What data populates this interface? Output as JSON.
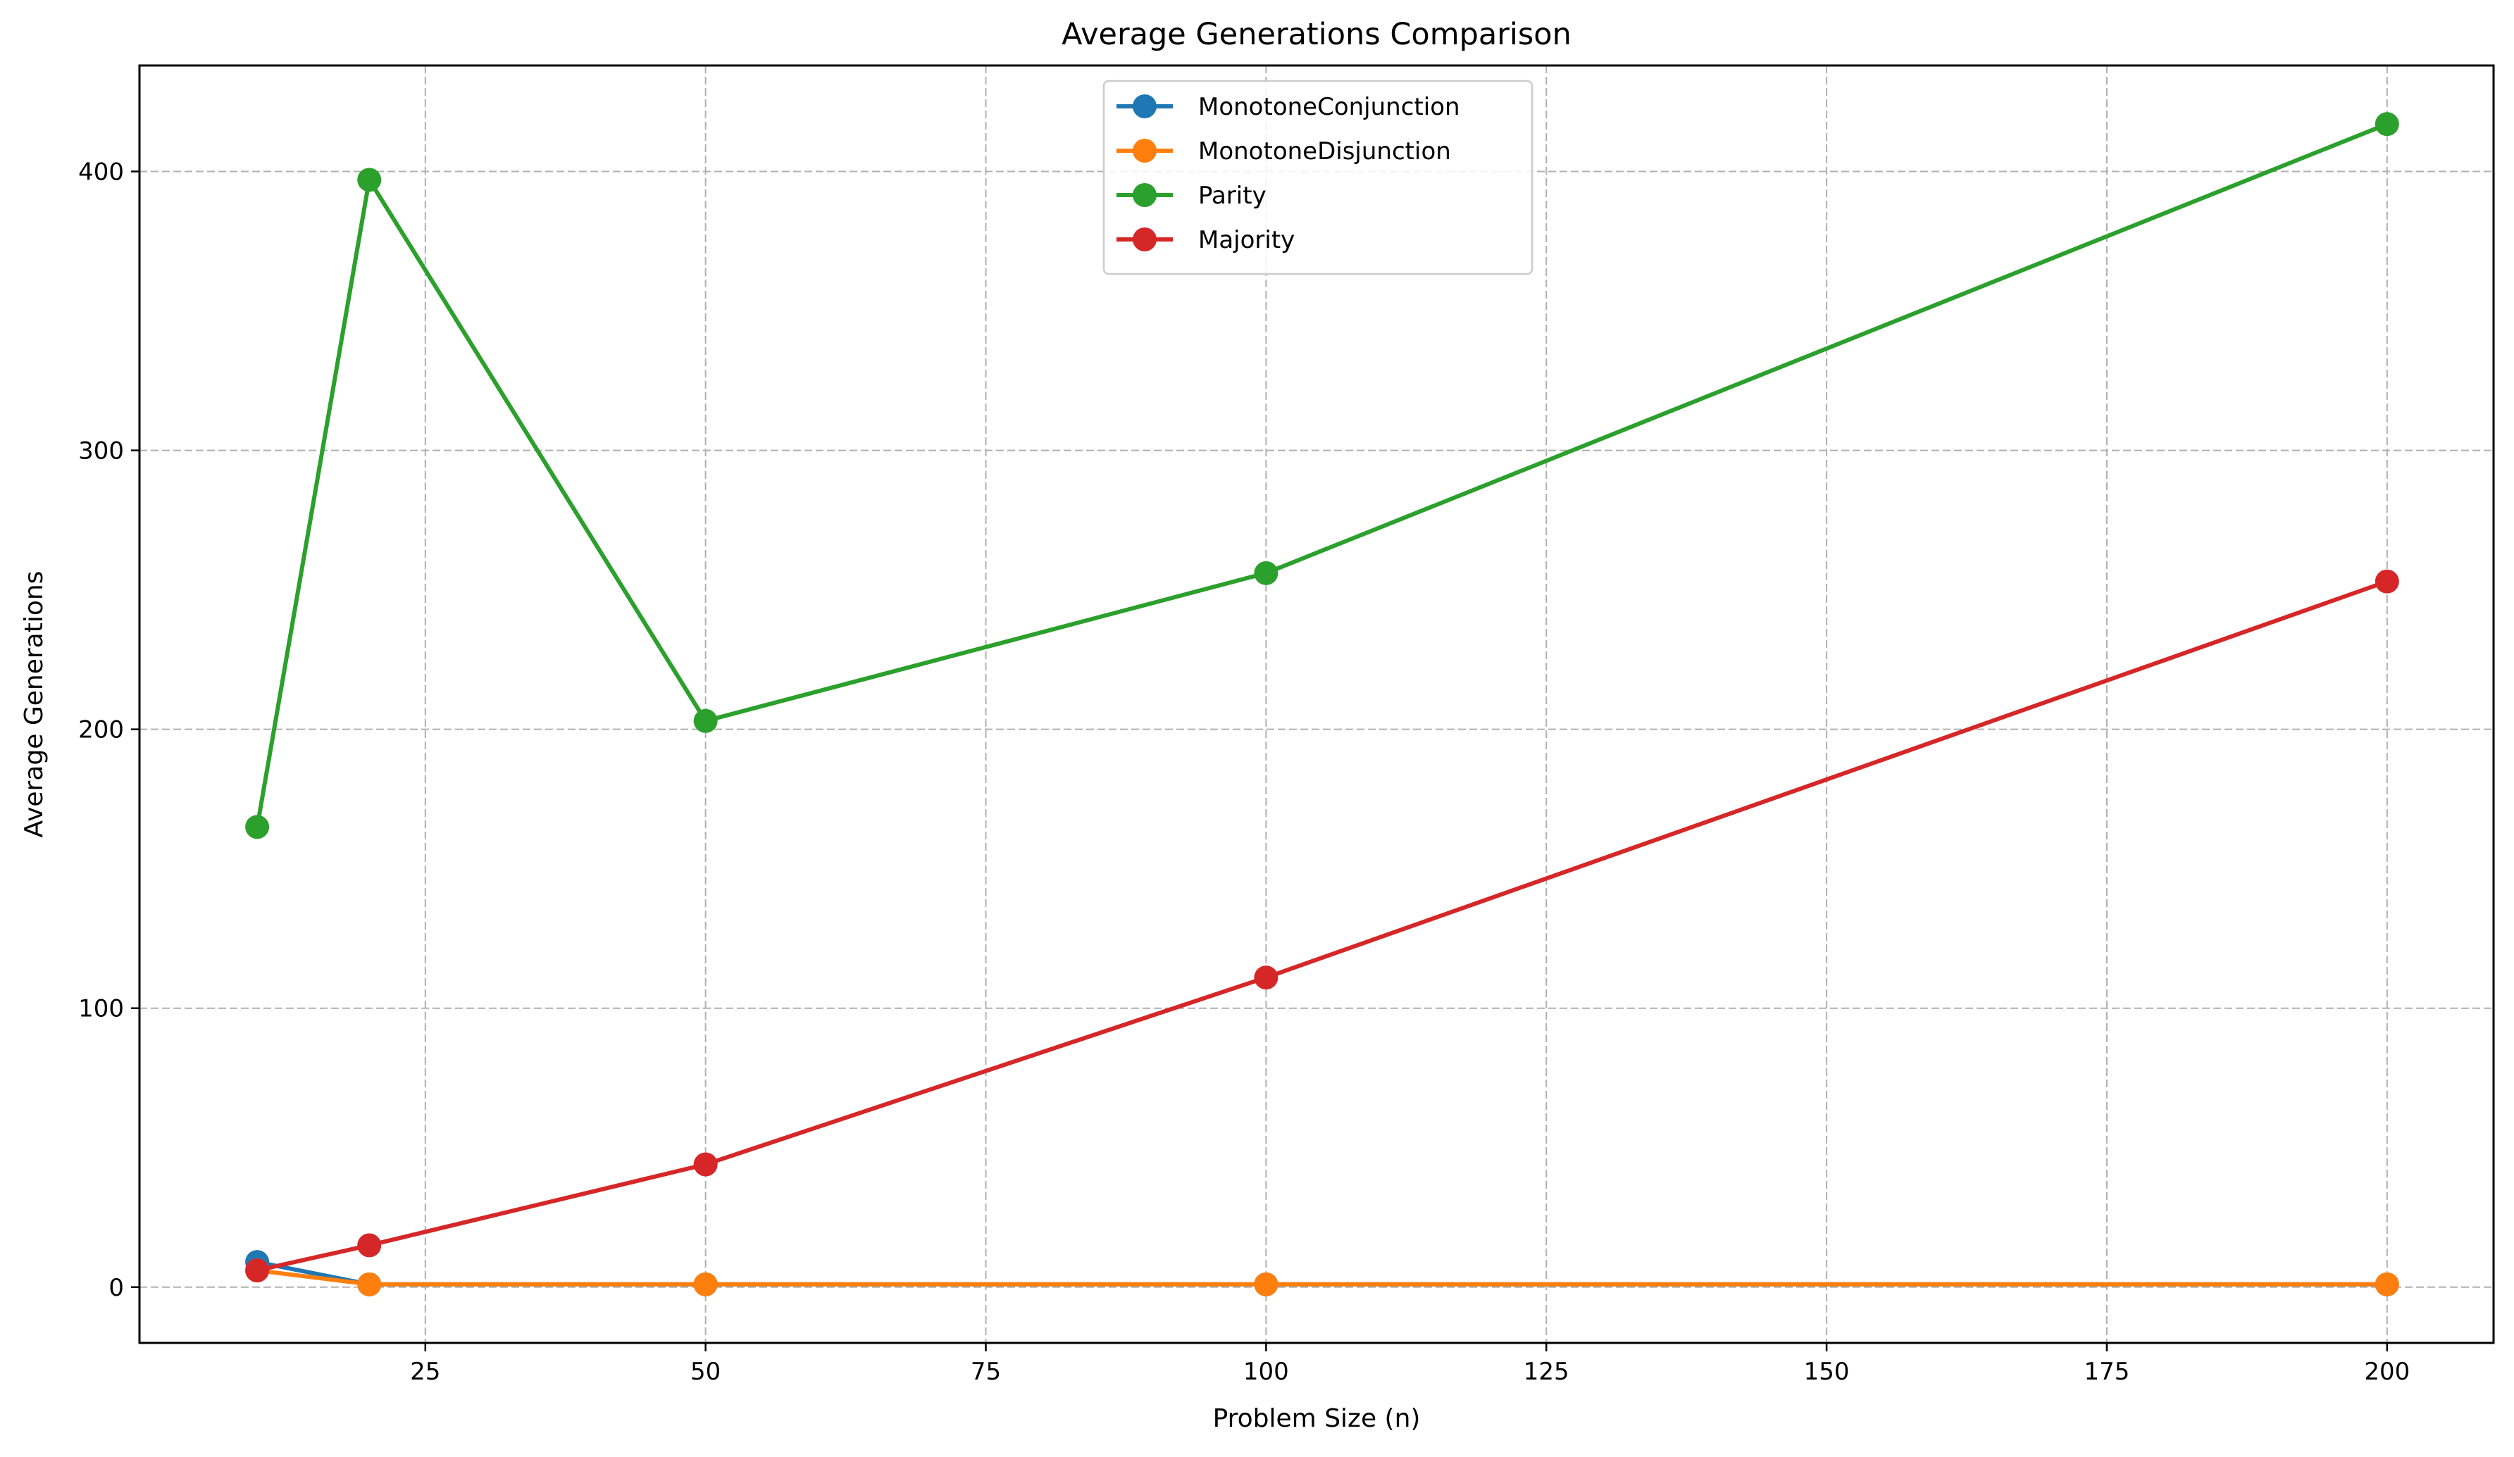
{
  "chart_data": {
    "type": "line",
    "title": "Average Generations Comparison",
    "xlabel": "Problem Size (n)",
    "ylabel": "Average Generations",
    "x": [
      10,
      20,
      50,
      100,
      200
    ],
    "xlim": [
      -0.5,
      209.5
    ],
    "ylim": [
      -20,
      438
    ],
    "xticks": [
      25,
      50,
      75,
      100,
      125,
      150,
      175,
      200
    ],
    "yticks": [
      0,
      100,
      200,
      300,
      400
    ],
    "grid": true,
    "legend_position": "upper center",
    "series": [
      {
        "name": "MonotoneConjunction",
        "color": "#1f77b4",
        "values": [
          9,
          1,
          1,
          1,
          1
        ]
      },
      {
        "name": "MonotoneDisjunction",
        "color": "#ff7f0e",
        "values": [
          6,
          1,
          1,
          1,
          1
        ]
      },
      {
        "name": "Parity",
        "color": "#2ca02c",
        "values": [
          165,
          397,
          203,
          256,
          417
        ]
      },
      {
        "name": "Majority",
        "color": "#d62728",
        "values": [
          6,
          15,
          44,
          111,
          253
        ]
      }
    ]
  }
}
